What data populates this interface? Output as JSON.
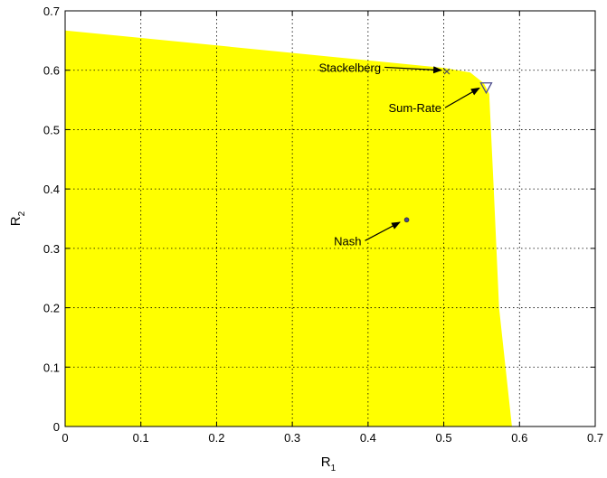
{
  "chart_data": {
    "type": "area",
    "xlabel": {
      "main": "R",
      "sub": "1"
    },
    "ylabel": {
      "main": "R",
      "sub": "2"
    },
    "xlim": [
      0,
      0.7
    ],
    "ylim": [
      0,
      0.7
    ],
    "xticks": [
      "0",
      "0.1",
      "0.2",
      "0.3",
      "0.4",
      "0.5",
      "0.6",
      "0.7"
    ],
    "yticks": [
      "0",
      "0.1",
      "0.2",
      "0.3",
      "0.4",
      "0.5",
      "0.6",
      "0.7"
    ],
    "grid": true,
    "region": {
      "fill": "#ffff00",
      "boundary": [
        {
          "x": 0,
          "y": 0
        },
        {
          "x": 0,
          "y": 0.667
        },
        {
          "x": 0.5,
          "y": 0.604
        },
        {
          "x": 0.535,
          "y": 0.596
        },
        {
          "x": 0.553,
          "y": 0.578
        },
        {
          "x": 0.56,
          "y": 0.56
        },
        {
          "x": 0.566,
          "y": 0.4
        },
        {
          "x": 0.573,
          "y": 0.2
        },
        {
          "x": 0.59,
          "y": 0
        }
      ]
    },
    "points": [
      {
        "label": "Stackelberg",
        "x": 0.504,
        "y": 0.598,
        "marker": "x",
        "color": "#555555",
        "annotation": {
          "text_x": 0.335,
          "text_y": 0.605,
          "arrow_to_x": 0.497,
          "arrow_to_y": 0.6
        }
      },
      {
        "label": "Sum-Rate",
        "x": 0.556,
        "y": 0.571,
        "marker": "triangle-down",
        "color": "#4b4b8b",
        "annotation": {
          "text_x": 0.427,
          "text_y": 0.537,
          "arrow_to_x": 0.547,
          "arrow_to_y": 0.57
        }
      },
      {
        "label": "Nash",
        "x": 0.451,
        "y": 0.348,
        "marker": "dot",
        "color": "#4b4b8b",
        "annotation": {
          "text_x": 0.355,
          "text_y": 0.313,
          "arrow_to_x": 0.442,
          "arrow_to_y": 0.344
        }
      }
    ]
  }
}
